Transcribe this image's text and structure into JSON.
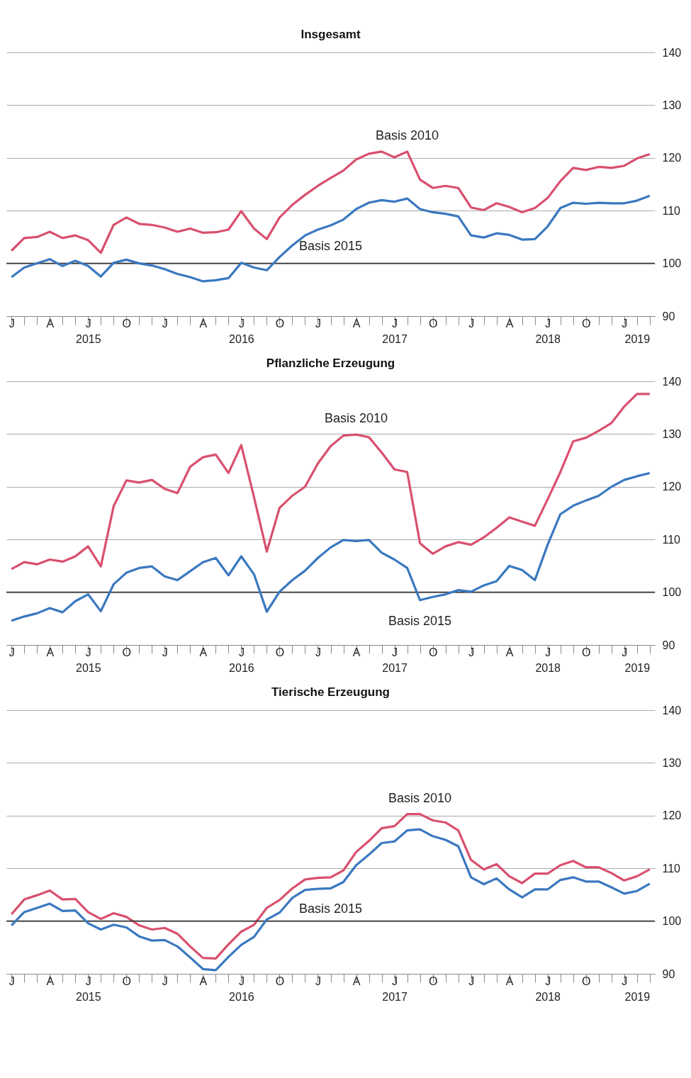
{
  "chart_data": [
    {
      "type": "line",
      "title": "Insgesamt",
      "categories": [
        "J",
        null,
        null,
        "A",
        null,
        null,
        "J",
        null,
        null,
        "O",
        null,
        null,
        "J",
        null,
        null,
        "A",
        null,
        null,
        "J",
        null,
        null,
        "O",
        null,
        null,
        "J",
        null,
        null,
        "A",
        null,
        null,
        "J",
        null,
        null,
        "O",
        null,
        null,
        "J",
        null,
        null,
        "A",
        null,
        null,
        "J",
        null,
        null,
        "O",
        null,
        null,
        "J",
        null,
        null
      ],
      "series": [
        {
          "name": "Basis 2010",
          "color": "#d9506e",
          "values": [
            102.4,
            104.8,
            105.0,
            106.0,
            104.8,
            105.3,
            104.4,
            102.0,
            107.3,
            108.7,
            107.5,
            107.3,
            106.8,
            106.0,
            106.6,
            105.8,
            105.9,
            106.4,
            109.9,
            106.6,
            104.6,
            108.7,
            111.1,
            113.0,
            114.7,
            116.2,
            117.6,
            119.7,
            120.8,
            121.2,
            120.1,
            121.2,
            115.9,
            114.3,
            114.7,
            114.3,
            110.6,
            110.1,
            111.4,
            110.7,
            109.7,
            110.5,
            112.4,
            115.6,
            118.1,
            117.7,
            118.3,
            118.1,
            118.5,
            119.9,
            120.7
          ]
        },
        {
          "name": "Basis 2015",
          "color": "#3a78c0",
          "values": [
            97.4,
            99.2,
            100.0,
            100.8,
            99.5,
            100.5,
            99.5,
            97.5,
            100.1,
            100.7,
            100.0,
            99.6,
            98.9,
            98.0,
            97.4,
            96.6,
            96.8,
            97.2,
            100.1,
            99.2,
            98.7,
            101.2,
            103.4,
            105.3,
            106.4,
            107.2,
            108.3,
            110.3,
            111.5,
            112.0,
            111.7,
            112.3,
            110.3,
            109.7,
            109.4,
            108.9,
            105.3,
            104.9,
            105.7,
            105.4,
            104.5,
            104.6,
            107.0,
            110.5,
            111.5,
            111.3,
            111.5,
            111.4,
            111.4,
            111.9,
            112.8
          ]
        }
      ],
      "annotations": [
        "2015",
        "2016",
        "2017",
        "2018",
        "2019"
      ],
      "ylim": [
        90,
        140
      ],
      "yticks": [
        90,
        100,
        110,
        120,
        130,
        140
      ],
      "grid": "y",
      "ref_lines": [
        {
          "axis": "y",
          "value": 100,
          "color": "#333333"
        }
      ]
    },
    {
      "type": "line",
      "title": "Pflanzliche Erzeugung",
      "categories": [
        "J",
        null,
        null,
        "A",
        null,
        null,
        "J",
        null,
        null,
        "O",
        null,
        null,
        "J",
        null,
        null,
        "A",
        null,
        null,
        "J",
        null,
        null,
        "O",
        null,
        null,
        "J",
        null,
        null,
        "A",
        null,
        null,
        "J",
        null,
        null,
        "O",
        null,
        null,
        "J",
        null,
        null,
        "A",
        null,
        null,
        "J",
        null,
        null,
        "O",
        null,
        null,
        "J",
        null,
        null
      ],
      "series": [
        {
          "name": "Basis 2010",
          "color": "#d9506e",
          "values": [
            104.4,
            105.7,
            105.3,
            106.2,
            105.8,
            106.8,
            108.7,
            104.9,
            116.3,
            121.2,
            120.8,
            121.3,
            119.6,
            118.8,
            123.8,
            125.6,
            126.1,
            122.6,
            127.9,
            118.0,
            107.7,
            116.0,
            118.3,
            120.0,
            124.4,
            127.7,
            129.7,
            129.9,
            129.4,
            126.5,
            123.3,
            122.8,
            109.3,
            107.3,
            108.7,
            109.5,
            109.0,
            110.4,
            112.2,
            114.2,
            113.4,
            112.6,
            117.6,
            122.8,
            128.6,
            129.3,
            130.6,
            132.1,
            135.2,
            137.6,
            137.6
          ]
        },
        {
          "name": "Basis 2015",
          "color": "#3a78c0",
          "values": [
            94.6,
            95.4,
            96.0,
            97.0,
            96.2,
            98.3,
            99.6,
            96.4,
            101.5,
            103.7,
            104.6,
            104.9,
            103.0,
            102.3,
            104.0,
            105.7,
            106.5,
            103.2,
            106.8,
            103.4,
            96.3,
            100.1,
            102.3,
            104.1,
            106.5,
            108.5,
            109.9,
            109.7,
            109.9,
            107.5,
            106.2,
            104.6,
            98.5,
            99.1,
            99.6,
            100.4,
            100.1,
            101.3,
            102.1,
            105.0,
            104.2,
            102.3,
            109.0,
            114.8,
            116.4,
            117.4,
            118.3,
            120.0,
            121.3,
            122.0,
            122.6
          ]
        }
      ],
      "annotations": [
        "2015",
        "2016",
        "2017",
        "2018",
        "2019"
      ],
      "ylim": [
        90,
        140
      ],
      "yticks": [
        90,
        100,
        110,
        120,
        130,
        140
      ],
      "grid": "y",
      "ref_lines": [
        {
          "axis": "y",
          "value": 100,
          "color": "#333333"
        }
      ]
    },
    {
      "type": "line",
      "title": "Tierische Erzeugung",
      "categories": [
        "J",
        null,
        null,
        "A",
        null,
        null,
        "J",
        null,
        null,
        "O",
        null,
        null,
        "J",
        null,
        null,
        "A",
        null,
        null,
        "J",
        null,
        null,
        "O",
        null,
        null,
        "J",
        null,
        null,
        "A",
        null,
        null,
        "J",
        null,
        null,
        "O",
        null,
        null,
        "J",
        null,
        null,
        "A",
        null,
        null,
        "J",
        null,
        null,
        "O",
        null,
        null,
        "J",
        null,
        null
      ],
      "series": [
        {
          "name": "Basis 2010",
          "color": "#d9506e",
          "values": [
            101.3,
            104.1,
            104.9,
            105.8,
            104.1,
            104.2,
            101.7,
            100.4,
            101.5,
            100.8,
            99.2,
            98.4,
            98.7,
            97.6,
            95.2,
            93.0,
            92.9,
            95.6,
            98.0,
            99.3,
            102.5,
            104.0,
            106.2,
            107.9,
            108.2,
            108.3,
            109.6,
            113.1,
            115.2,
            117.6,
            118.0,
            120.3,
            120.3,
            119.1,
            118.7,
            117.2,
            111.6,
            109.8,
            110.8,
            108.5,
            107.2,
            109.0,
            109.0,
            110.6,
            111.4,
            110.2,
            110.2,
            109.1,
            107.7,
            108.5,
            109.8
          ]
        },
        {
          "name": "Basis 2015",
          "color": "#3a78c0",
          "values": [
            99.2,
            101.7,
            102.5,
            103.3,
            101.9,
            102.0,
            99.6,
            98.4,
            99.3,
            98.8,
            97.1,
            96.3,
            96.4,
            95.2,
            93.1,
            90.9,
            90.7,
            93.2,
            95.5,
            97.0,
            100.3,
            101.6,
            104.4,
            105.9,
            106.1,
            106.2,
            107.4,
            110.6,
            112.6,
            114.8,
            115.1,
            117.2,
            117.4,
            116.1,
            115.4,
            114.2,
            108.3,
            107.0,
            108.1,
            106.0,
            104.5,
            106.0,
            106.0,
            107.8,
            108.3,
            107.5,
            107.5,
            106.4,
            105.2,
            105.7,
            107.1
          ]
        }
      ],
      "annotations": [
        "2015",
        "2016",
        "2017",
        "2018",
        "2019"
      ],
      "ylim": [
        90,
        140
      ],
      "yticks": [
        90,
        100,
        110,
        120,
        130,
        140
      ],
      "grid": "y",
      "ref_lines": [
        {
          "axis": "y",
          "value": 100,
          "color": "#333333"
        }
      ]
    }
  ]
}
